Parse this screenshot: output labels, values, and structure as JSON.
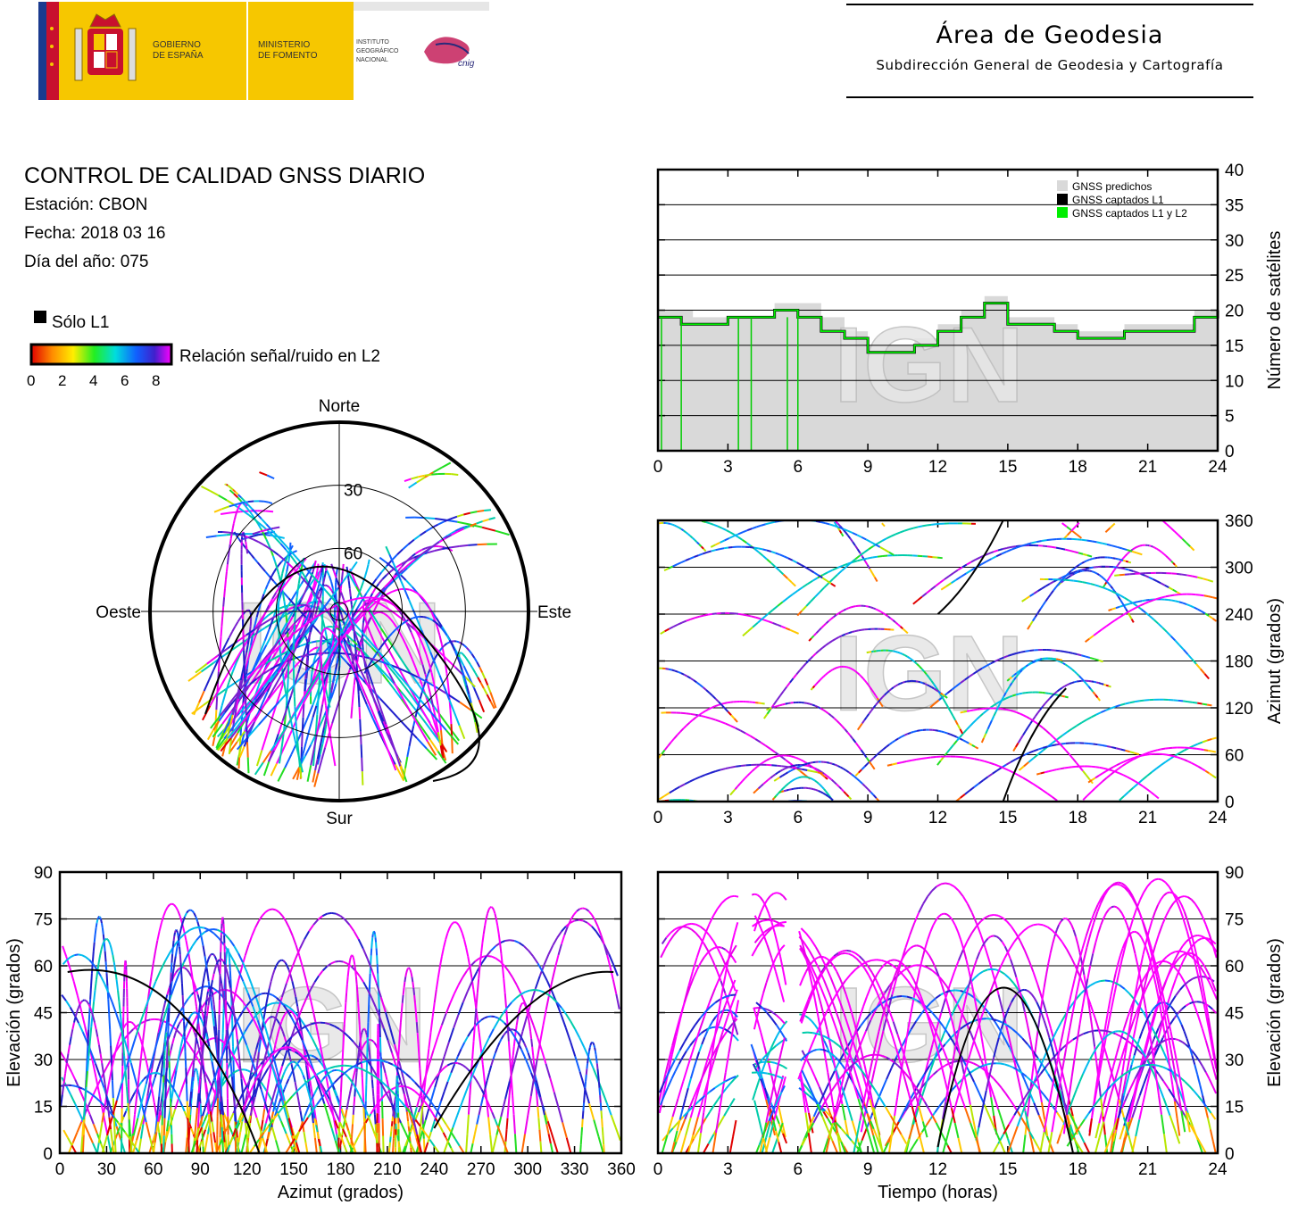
{
  "header": {
    "gov_line1": "GOBIERNO",
    "gov_line2": "DE ESPAÑA",
    "min_line1": "MINISTERIO",
    "min_line2": "DE FOMENTO",
    "ign_line1": "INSTITUTO",
    "ign_line2": "GEOGRÁFICO",
    "ign_line3": "NACIONAL",
    "cnig": "cnig",
    "area_title": "Área de Geodesia",
    "area_subtitle": "Subdirección General de Geodesia y Cartografía"
  },
  "info": {
    "title": "CONTROL DE CALIDAD GNSS DIARIO",
    "station": "Estación: CBON",
    "date": "Fecha: 2018 03 16",
    "doy": "Día del año: 075"
  },
  "legend": {
    "l1_only": "Sólo L1",
    "snr_label": "Relación señal/ruido en L2",
    "snr_ticks": [
      "0",
      "2",
      "4",
      "6",
      "8"
    ],
    "colors": {
      "l1_only": "#000000",
      "predicted": "#d9d9d9",
      "captured_l1": "#000000",
      "captured_l1_l2": "#00ee00"
    }
  },
  "watermark": "IGN",
  "chart_data": [
    {
      "type": "area",
      "id": "satellite-count",
      "ylabel": "Número de satélites",
      "xlim": [
        0,
        24
      ],
      "ylim": [
        0,
        40
      ],
      "xticks": [
        "0",
        "3",
        "6",
        "9",
        "12",
        "15",
        "18",
        "21",
        "24"
      ],
      "yticks": [
        "0",
        "5",
        "10",
        "15",
        "20",
        "25",
        "30",
        "35",
        "40"
      ],
      "legend": [
        "GNSS predichos",
        "GNSS captados L1",
        "GNSS captados L1 y L2"
      ],
      "legend_position": "top-right",
      "grid": true,
      "x": [
        0,
        1,
        1.5,
        3,
        4,
        5,
        6,
        7,
        8,
        9,
        10,
        11,
        12,
        13,
        14,
        15,
        16,
        17,
        18,
        19,
        20,
        21,
        22,
        23,
        24
      ],
      "series": [
        {
          "name": "GNSS predichos",
          "values": [
            20,
            20,
            19,
            19,
            19,
            21,
            21,
            19,
            17,
            15,
            15,
            16,
            18,
            20,
            22,
            19,
            19,
            18,
            17,
            17,
            18,
            18,
            18,
            20,
            21
          ]
        },
        {
          "name": "GNSS captados L1",
          "values": [
            19,
            18,
            18,
            19,
            19,
            20,
            19,
            17,
            16,
            14,
            14,
            15,
            17,
            19,
            21,
            18,
            18,
            17,
            16,
            16,
            17,
            17,
            17,
            19,
            20
          ]
        },
        {
          "name": "GNSS captados L1 y L2",
          "values": [
            19,
            18,
            18,
            19,
            19,
            20,
            19,
            17,
            16,
            14,
            14,
            15,
            17,
            19,
            21,
            18,
            18,
            17,
            16,
            16,
            17,
            17,
            17,
            19,
            20
          ]
        }
      ]
    },
    {
      "type": "scatter",
      "id": "azimuth-time",
      "ylabel": "Azimut (grados)",
      "xlim": [
        0,
        24
      ],
      "ylim": [
        0,
        360
      ],
      "xticks": [
        "0",
        "3",
        "6",
        "9",
        "12",
        "15",
        "18",
        "21",
        "24"
      ],
      "yticks": [
        "0",
        "60",
        "120",
        "180",
        "240",
        "300",
        "360"
      ],
      "grid": true
    },
    {
      "type": "scatter",
      "id": "skyplot",
      "labels": {
        "north": "Norte",
        "south": "Sur",
        "east": "Este",
        "west": "Oeste"
      },
      "rings": [
        "30",
        "60"
      ]
    },
    {
      "type": "scatter",
      "id": "elevation-azimuth",
      "xlabel": "Azimut (grados)",
      "ylabel": "Elevación (grados)",
      "xlim": [
        0,
        360
      ],
      "ylim": [
        0,
        90
      ],
      "xticks": [
        "0",
        "30",
        "60",
        "90",
        "120",
        "150",
        "180",
        "210",
        "240",
        "270",
        "300",
        "330",
        "360"
      ],
      "yticks": [
        "0",
        "15",
        "30",
        "45",
        "60",
        "75",
        "90"
      ],
      "grid": true
    },
    {
      "type": "scatter",
      "id": "elevation-time",
      "xlabel": "Tiempo (horas)",
      "ylabel": "Elevación (grados)",
      "xlim": [
        0,
        24
      ],
      "ylim": [
        0,
        90
      ],
      "xticks": [
        "0",
        "3",
        "6",
        "9",
        "12",
        "15",
        "18",
        "21",
        "24"
      ],
      "yticks": [
        "0",
        "15",
        "30",
        "45",
        "60",
        "75",
        "90"
      ],
      "grid": true
    }
  ]
}
